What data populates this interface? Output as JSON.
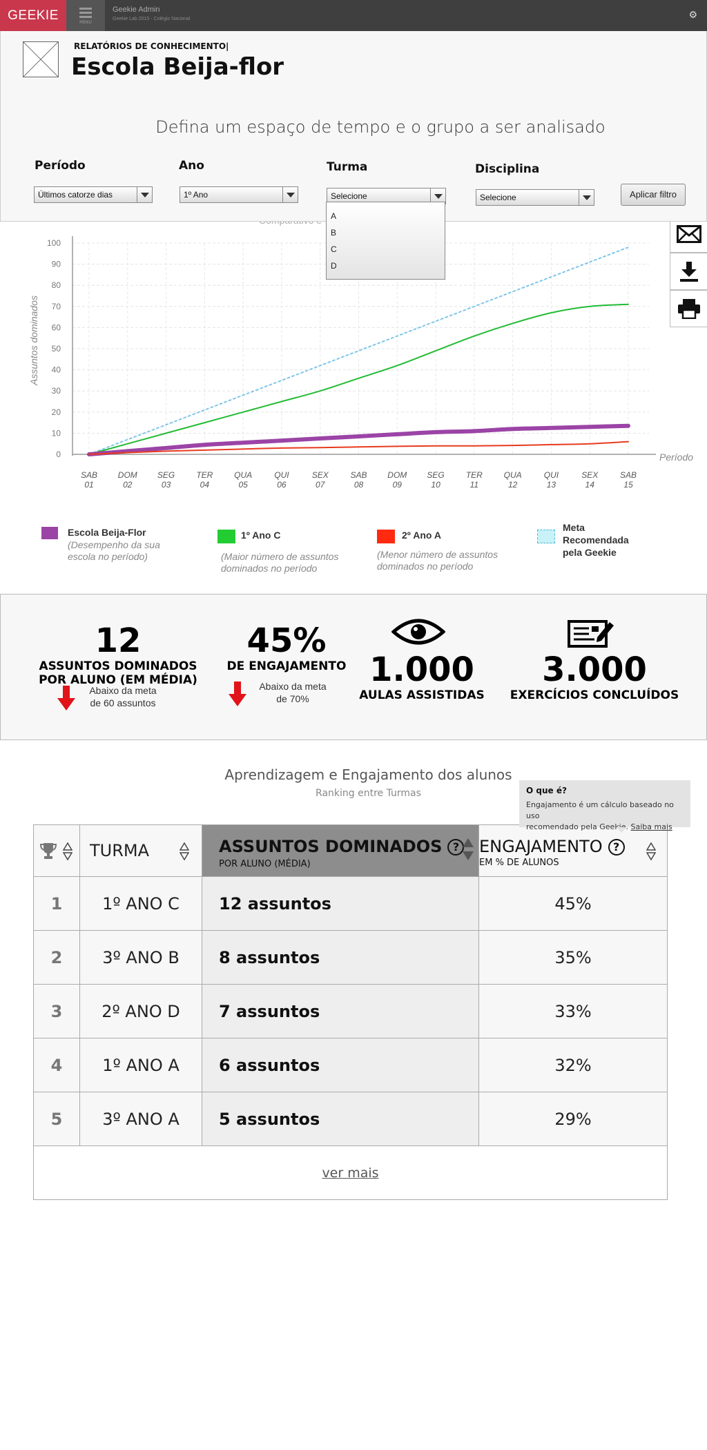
{
  "app": {
    "logo": "GEEKIE",
    "menu_label": "MENU",
    "title": "Geekie Admin",
    "subtitle": "Geekie Lab 2015 - Colégio Nacional"
  },
  "header": {
    "report_label": "RELATÓRIOS DE CONHECIMENTO|",
    "school_name": "Escola Beija-flor",
    "filter_heading": "Defina um espaço de tempo e o grupo a ser analisado"
  },
  "filters": {
    "periodo": {
      "label": "Período",
      "value": "Últimos catorze dias"
    },
    "ano": {
      "label": "Ano",
      "value": "1º Ano"
    },
    "turma": {
      "label": "Turma",
      "value": "Selecione",
      "options": [
        "A",
        "B",
        "C",
        "D"
      ]
    },
    "disciplina": {
      "label": "Disciplina",
      "value": "Selecione"
    },
    "apply_label": "Aplicar filtro"
  },
  "side_actions": [
    "mail-icon",
    "download-icon",
    "print-icon"
  ],
  "chart_data": {
    "type": "line",
    "title": "Comparativo e",
    "ylabel": "Assuntos dominados",
    "xlabel": "Período",
    "ylim": [
      0,
      100
    ],
    "yticks": [
      0,
      10,
      20,
      30,
      40,
      50,
      60,
      70,
      80,
      90,
      100
    ],
    "x": [
      {
        "day": "SAB",
        "num": "01"
      },
      {
        "day": "DOM",
        "num": "02"
      },
      {
        "day": "SEG",
        "num": "03"
      },
      {
        "day": "TER",
        "num": "04"
      },
      {
        "day": "QUA",
        "num": "05"
      },
      {
        "day": "QUI",
        "num": "06"
      },
      {
        "day": "SEX",
        "num": "07"
      },
      {
        "day": "SAB",
        "num": "08"
      },
      {
        "day": "DOM",
        "num": "09"
      },
      {
        "day": "SEG",
        "num": "10"
      },
      {
        "day": "TER",
        "num": "11"
      },
      {
        "day": "QUA",
        "num": "12"
      },
      {
        "day": "QUI",
        "num": "13"
      },
      {
        "day": "SEX",
        "num": "14"
      },
      {
        "day": "SAB",
        "num": "15"
      }
    ],
    "grid": true,
    "legend_position": "bottom",
    "series": [
      {
        "name": "Meta Recomendada pela Geekie",
        "color": "#7fc6e8",
        "style": "dotted",
        "width": 2,
        "values": [
          0,
          7,
          14,
          21,
          28,
          35,
          42,
          49,
          56,
          63,
          70,
          77,
          84,
          91,
          98
        ]
      },
      {
        "name": "1º Ano C",
        "color": "#22bb33",
        "style": "solid",
        "width": 2,
        "values": [
          0,
          5,
          10,
          15,
          20,
          25,
          30,
          36,
          42,
          49,
          56,
          62,
          67,
          70,
          71
        ]
      },
      {
        "name": "Escola Beija-Flor",
        "color": "#9b44a6",
        "style": "solid",
        "width": 6,
        "values": [
          0,
          1.5,
          3,
          4.5,
          5.5,
          6.5,
          7.5,
          8.5,
          9.5,
          10.5,
          11,
          12,
          12.5,
          13,
          13.5
        ]
      },
      {
        "name": "2º Ano A",
        "color": "#e83a1e",
        "style": "solid",
        "width": 2,
        "values": [
          0,
          0.8,
          1.5,
          2,
          2.5,
          3,
          3.2,
          3.5,
          3.8,
          4,
          4,
          4.2,
          4.6,
          5,
          6
        ]
      }
    ]
  },
  "legend": [
    {
      "name": "Escola Beija-Flor",
      "desc1": "(Desempenho da sua",
      "desc2": "escola no período)",
      "color": "#9b44a6"
    },
    {
      "name": "1º Ano C",
      "desc1": "(Maior número de assuntos",
      "desc2": "dominados no período",
      "color": "#22cc33"
    },
    {
      "name": "2º Ano A",
      "desc1": "(Menor número de assuntos",
      "desc2": "dominados no período",
      "color": "#ff2a10"
    },
    {
      "name1": "Meta",
      "name2": "Recomendada",
      "name3": "pela Geekie",
      "color": "#c8f2f8"
    }
  ],
  "kpis": {
    "assuntos": {
      "value": "12",
      "label1": "ASSUNTOS DOMINADOS",
      "label2": "POR ALUNO (EM MÉDIA)",
      "note1": "Abaixo da meta",
      "note2": "de 60 assuntos"
    },
    "engajamento": {
      "value": "45%",
      "label": "DE ENGAJAMENTO",
      "note1": "Abaixo da meta",
      "note2": "de 70%"
    },
    "aulas": {
      "value": "1.000",
      "label": "AULAS ASSISTIDAS"
    },
    "exercicios": {
      "value": "3.000",
      "label": "EXERCÍCIOS  CONCLUÍDOS"
    }
  },
  "ranking": {
    "title": "Aprendizagem e Engajamento dos alunos",
    "subtitle": "Ranking entre Turmas",
    "tooltip": {
      "heading": "O que é?",
      "body1": "Engajamento é um cálculo baseado no uso",
      "body2": "recomendado pela Geekie.",
      "link": "Saiba mais"
    },
    "headers": {
      "turma": "TURMA",
      "assuntos_main": "ASSUNTOS DOMINADOS",
      "assuntos_sub": "POR ALUNO (MÉDIA)",
      "eng_main": "ENGAJAMENTO",
      "eng_sub": "EM % DE ALUNOS"
    },
    "rows": [
      {
        "pos": "1",
        "turma": "1º ANO C",
        "assuntos": "12 assuntos",
        "eng": "45%"
      },
      {
        "pos": "2",
        "turma": "3º ANO B",
        "assuntos": "8 assuntos",
        "eng": "35%"
      },
      {
        "pos": "3",
        "turma": "2º ANO D",
        "assuntos": "7 assuntos",
        "eng": "33%"
      },
      {
        "pos": "4",
        "turma": "1º ANO A",
        "assuntos": "6 assuntos",
        "eng": "32%"
      },
      {
        "pos": "5",
        "turma": "3º ANO A",
        "assuntos": "5 assuntos",
        "eng": "29%"
      }
    ],
    "more_label": "ver mais"
  }
}
